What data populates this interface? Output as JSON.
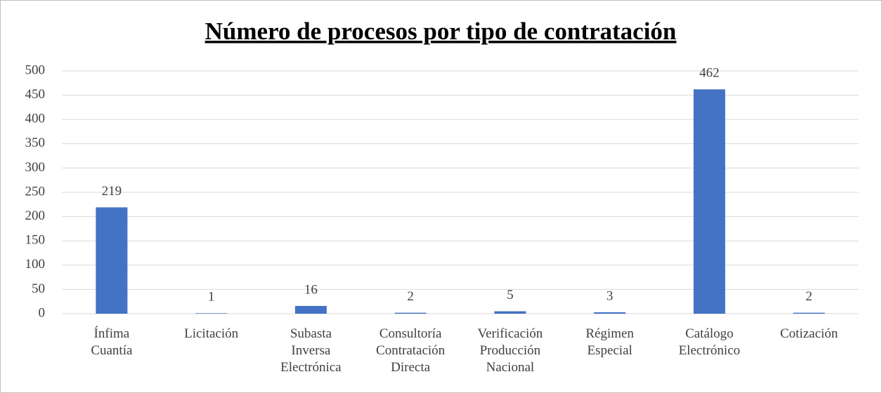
{
  "chart_data": {
    "type": "bar",
    "title": "Número de procesos por tipo de contratación",
    "categories": [
      "Ínfima Cuantía",
      "Licitación",
      "Subasta Inversa Electrónica",
      "Consultoría Contratación Directa",
      "Verificación Producción Nacional",
      "Régimen Especial",
      "Catálogo Electrónico",
      "Cotización"
    ],
    "values": [
      219,
      1,
      16,
      2,
      5,
      3,
      462,
      2
    ],
    "color": "#4472c4",
    "ylim": [
      0,
      500
    ],
    "yticks": [
      0,
      50,
      100,
      150,
      200,
      250,
      300,
      350,
      400,
      450,
      500
    ],
    "grid": true
  }
}
